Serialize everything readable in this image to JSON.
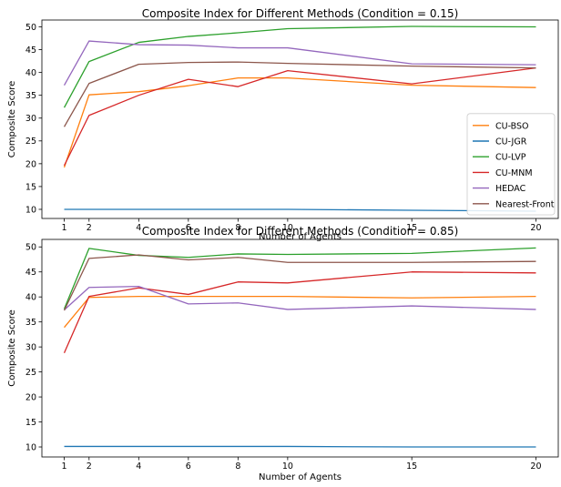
{
  "chart_data": [
    {
      "type": "line",
      "title": "Composite Index for Different Methods (Condition = 0.15)",
      "xlabel": "Number of Agents",
      "ylabel": "Composite Score",
      "x": [
        1,
        2,
        4,
        6,
        8,
        10,
        15,
        20
      ],
      "xticks": [
        "1",
        "2",
        "4",
        "6",
        "8",
        "10",
        "15",
        "20"
      ],
      "yticks": [
        "10",
        "15",
        "20",
        "25",
        "30",
        "35",
        "40",
        "45",
        "50"
      ],
      "ylim": [
        8.0,
        51.5
      ],
      "xlim": [
        0.1,
        20.9
      ],
      "grid": false,
      "legend": "lower-right",
      "series": [
        {
          "name": "CU-BSO",
          "color": "#ff7f0e",
          "values": [
            19.2,
            35.1,
            35.8,
            37.1,
            38.8,
            38.8,
            37.2,
            36.7
          ]
        },
        {
          "name": "CU-JGR",
          "color": "#1f77b4",
          "values": [
            10.0,
            10.0,
            10.0,
            10.0,
            10.0,
            10.0,
            9.8,
            9.6
          ]
        },
        {
          "name": "CU-LVP",
          "color": "#2ca02c",
          "values": [
            32.3,
            42.4,
            46.6,
            47.9,
            48.7,
            49.6,
            50.1,
            50.0
          ]
        },
        {
          "name": "CU-MNM",
          "color": "#d62728",
          "values": [
            19.6,
            30.6,
            35.0,
            38.5,
            36.9,
            40.4,
            37.5,
            41.0
          ]
        },
        {
          "name": "HEDAC",
          "color": "#9467bd",
          "values": [
            37.2,
            46.9,
            46.1,
            46.0,
            45.4,
            45.4,
            41.9,
            41.7
          ]
        },
        {
          "name": "Nearest-Front",
          "color": "#8c564b",
          "values": [
            28.1,
            37.6,
            41.8,
            42.2,
            42.3,
            42.0,
            41.4,
            41.0
          ]
        }
      ]
    },
    {
      "type": "line",
      "title": "Composite Index for Different Methods (Condition = 0.85)",
      "xlabel": "Number of Agents",
      "ylabel": "Composite Score",
      "x": [
        1,
        2,
        4,
        6,
        8,
        10,
        15,
        20
      ],
      "xticks": [
        "1",
        "2",
        "4",
        "6",
        "8",
        "10",
        "15",
        "20"
      ],
      "yticks": [
        "10",
        "15",
        "20",
        "25",
        "30",
        "35",
        "40",
        "45",
        "50"
      ],
      "ylim": [
        8.0,
        51.5
      ],
      "xlim": [
        0.1,
        20.9
      ],
      "grid": false,
      "legend": "none",
      "series": [
        {
          "name": "CU-BSO",
          "color": "#ff7f0e",
          "values": [
            33.9,
            39.9,
            40.1,
            40.1,
            40.1,
            40.1,
            39.8,
            40.1
          ]
        },
        {
          "name": "CU-JGR",
          "color": "#1f77b4",
          "values": [
            10.1,
            10.1,
            10.1,
            10.1,
            10.1,
            10.1,
            10.0,
            10.0
          ]
        },
        {
          "name": "CU-LVP",
          "color": "#2ca02c",
          "values": [
            37.6,
            49.7,
            48.3,
            47.9,
            48.6,
            48.5,
            48.7,
            49.8
          ]
        },
        {
          "name": "CU-MNM",
          "color": "#d62728",
          "values": [
            28.8,
            40.1,
            41.8,
            40.5,
            43.0,
            42.8,
            45.0,
            44.8
          ]
        },
        {
          "name": "HEDAC",
          "color": "#9467bd",
          "values": [
            37.4,
            41.9,
            42.1,
            38.6,
            38.8,
            37.5,
            38.2,
            37.5
          ]
        },
        {
          "name": "Nearest-Front",
          "color": "#8c564b",
          "values": [
            37.3,
            47.7,
            48.4,
            47.4,
            47.9,
            46.9,
            46.9,
            47.1
          ]
        }
      ]
    }
  ]
}
